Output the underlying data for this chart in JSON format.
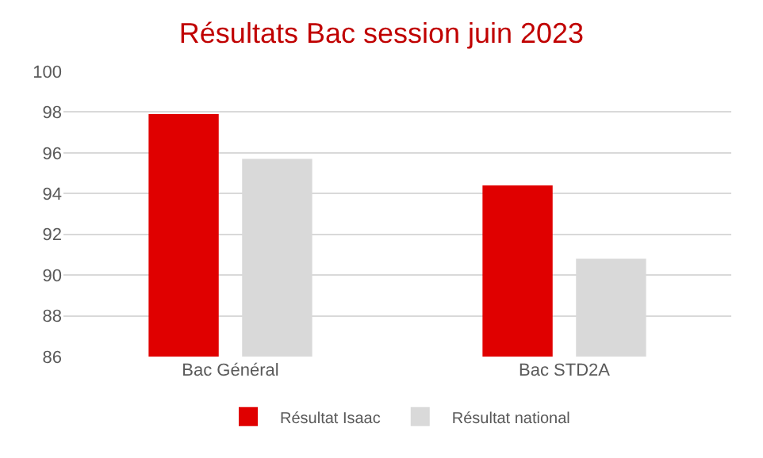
{
  "chart_data": {
    "type": "bar",
    "title": "Résultats Bac session juin 2023",
    "categories": [
      "Bac Général",
      "Bac STD2A"
    ],
    "series": [
      {
        "name": "Résultat Isaac",
        "color": "#e00000",
        "values": [
          97.9,
          94.4
        ]
      },
      {
        "name": "Résultat national",
        "color": "#d9d9d9",
        "values": [
          95.7,
          90.8
        ]
      }
    ],
    "ylim": [
      86,
      100
    ],
    "yticks": [
      86,
      88,
      90,
      92,
      94,
      96,
      98,
      100
    ],
    "grid": "y",
    "legend": "bottom"
  }
}
